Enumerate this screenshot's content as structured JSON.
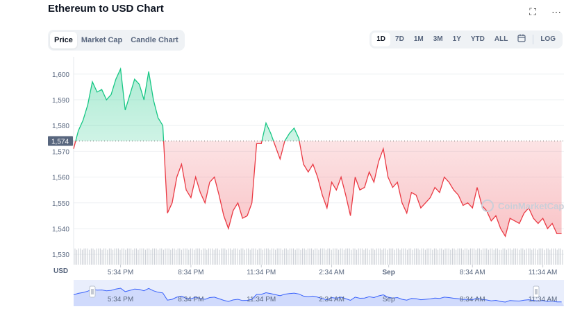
{
  "header": {
    "title": "Ethereum to USD Chart",
    "fullscreen_icon": "expand-icon",
    "more_icon": "more-icon",
    "fullscreen_glyph": "⛶",
    "more_glyph": "···"
  },
  "tabs": [
    {
      "label": "Price",
      "active": true
    },
    {
      "label": "Market Cap",
      "active": false
    },
    {
      "label": "Candle Chart",
      "active": false
    }
  ],
  "ranges": [
    {
      "label": "1D",
      "active": true
    },
    {
      "label": "7D",
      "active": false
    },
    {
      "label": "1M",
      "active": false
    },
    {
      "label": "3M",
      "active": false
    },
    {
      "label": "1Y",
      "active": false
    },
    {
      "label": "YTD",
      "active": false
    },
    {
      "label": "ALL",
      "active": false
    }
  ],
  "calendar_icon": "calendar-icon",
  "log_label": "LOG",
  "watermark": "CoinMarketCap",
  "colors": {
    "up": "#16c784",
    "down": "#ea3943",
    "navigator": "#3861fb"
  },
  "chart_data": {
    "type": "area",
    "xlabel": "USD",
    "ylim": [
      1526,
      1604
    ],
    "yticks": [
      1530,
      1540,
      1550,
      1560,
      1570,
      1580,
      1590,
      1600
    ],
    "ytick_labels": [
      "1,530",
      "1,540",
      "1,550",
      "1,560",
      "1,570",
      "1,580",
      "1,590",
      "1,600"
    ],
    "reference_price": 1574,
    "reference_label": "1,574",
    "x_tick_labels": [
      "5:34 PM",
      "8:34 PM",
      "11:34 PM",
      "2:34 AM",
      "Sep",
      "8:34 AM",
      "11:34 AM"
    ],
    "x_tick_positions": [
      2,
      5,
      8,
      11,
      13.43,
      17,
      20
    ],
    "x_range": [
      0,
      20.9
    ],
    "x_unit": "hours since 3:34 PM",
    "grid": true,
    "series": [
      {
        "x": [
          0,
          0.2,
          0.4,
          0.6,
          0.8,
          1.0,
          1.2,
          1.4,
          1.6,
          1.8,
          2.0,
          2.2,
          2.4,
          2.6,
          2.8,
          3.0,
          3.2,
          3.4,
          3.6,
          3.8,
          4.0,
          4.2,
          4.4,
          4.6,
          4.8,
          5.0,
          5.2,
          5.4,
          5.6,
          5.8,
          6.0,
          6.2,
          6.4,
          6.6,
          6.8,
          7.0,
          7.2,
          7.4,
          7.6,
          7.8,
          8.0,
          8.2,
          8.4,
          8.6,
          8.8,
          9.0,
          9.2,
          9.4,
          9.6,
          9.8,
          10.0,
          10.2,
          10.4,
          10.6,
          10.8,
          11.0,
          11.2,
          11.4,
          11.6,
          11.8,
          12.0,
          12.2,
          12.4,
          12.6,
          12.8,
          13.0,
          13.2,
          13.4,
          13.6,
          13.8,
          14.0,
          14.2,
          14.4,
          14.6,
          14.8,
          15.0,
          15.2,
          15.4,
          15.6,
          15.8,
          16.0,
          16.2,
          16.4,
          16.6,
          16.8,
          17.0,
          17.2,
          17.4,
          17.6,
          17.8,
          18.0,
          18.2,
          18.4,
          18.6,
          18.8,
          19.0,
          19.2,
          19.4,
          19.6,
          19.8,
          20.0,
          20.2,
          20.4,
          20.6,
          20.8
        ],
        "values": [
          1571,
          1578,
          1582,
          1588,
          1597,
          1593,
          1594,
          1590,
          1592,
          1598,
          1602,
          1586,
          1592,
          1598,
          1596,
          1590,
          1601,
          1590,
          1583,
          1580,
          1546,
          1550,
          1560,
          1565,
          1555,
          1552,
          1560,
          1554,
          1550,
          1558,
          1560,
          1553,
          1545,
          1540,
          1547,
          1550,
          1544,
          1545,
          1550,
          1573,
          1573,
          1581,
          1577,
          1572,
          1567,
          1574,
          1577,
          1579,
          1575,
          1565,
          1562,
          1565,
          1560,
          1553,
          1548,
          1558,
          1555,
          1560,
          1553,
          1545,
          1560,
          1555,
          1556,
          1562,
          1558,
          1566,
          1571,
          1560,
          1556,
          1558,
          1550,
          1546,
          1554,
          1553,
          1548,
          1550,
          1552,
          1556,
          1554,
          1560,
          1558,
          1555,
          1553,
          1549,
          1550,
          1548,
          1556,
          1549,
          1547,
          1543,
          1545,
          1540,
          1537,
          1544,
          1543,
          1542,
          1546,
          1548,
          1544,
          1542,
          1544,
          1540,
          1542,
          1538,
          1538
        ],
        "name": ""
      }
    ]
  },
  "navigator": {
    "labels": [
      "5:34 PM",
      "8:34 PM",
      "11:34 PM",
      "2:34 AM",
      "Sep",
      "8:34 AM",
      "11:34 AM"
    ],
    "handle_glyph": "II"
  }
}
